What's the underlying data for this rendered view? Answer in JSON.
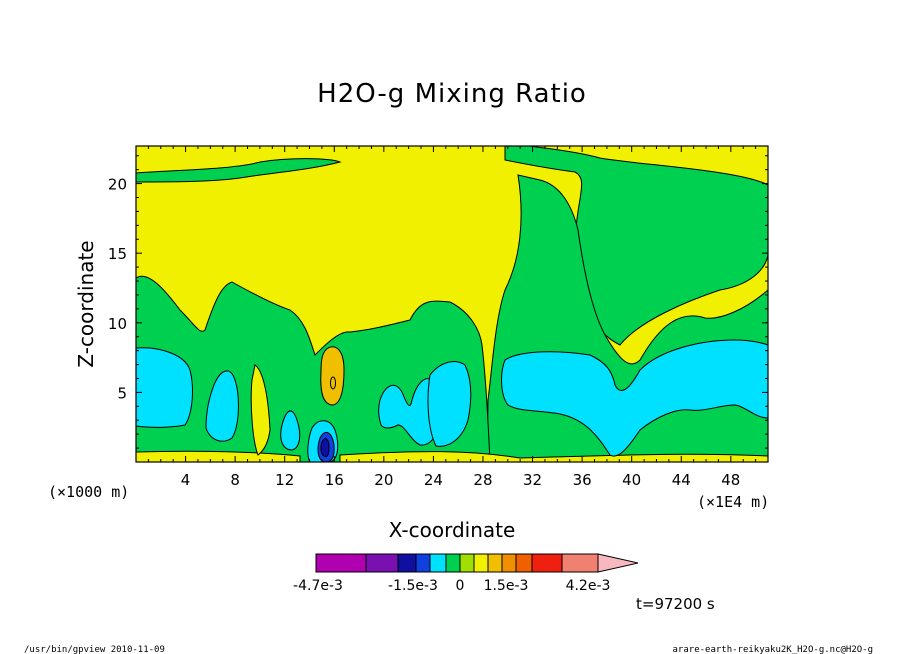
{
  "chart_data": {
    "type": "heatmap",
    "title": "H2O-g Mixing Ratio",
    "xlabel": "X-coordinate",
    "ylabel": "Z-coordinate",
    "x_unit_label": "(×1E4 m)",
    "y_unit_label": "(×1000 m)",
    "xlim": [
      0,
      51
    ],
    "ylim": [
      0,
      22.7
    ],
    "x_ticks": [
      "4",
      "8",
      "12",
      "16",
      "20",
      "24",
      "28",
      "32",
      "36",
      "40",
      "44",
      "48"
    ],
    "y_ticks": [
      "5",
      "10",
      "15",
      "20"
    ],
    "grid": false,
    "colorbar": {
      "colors": [
        "#b000b0",
        "#7a10b0",
        "#1010a0",
        "#1040e0",
        "#00e0ff",
        "#00d050",
        "#a0e000",
        "#f0f000",
        "#f0c000",
        "#f09000",
        "#f06000",
        "#f02010",
        "#f08070",
        "#f8b8c0"
      ],
      "labels": [
        "-4.7e-3",
        "-1.5e-3",
        "0",
        "1.5e-3",
        "4.2e-3"
      ]
    },
    "regions_summary": {
      "background_level": "0.4e-3 to 0.8e-3 (yellow)",
      "green_band_level": "0 to 0.4e-3",
      "cyan_pockets_level": "-0.4e-3 to 0",
      "orange_pocket_level": "0.8e-3 to 1.2e-3",
      "minimum_near": {
        "x": 15,
        "z": 1.2,
        "level": "below -1.5e-3 (blue)"
      }
    }
  },
  "time_label": "t=97200 s",
  "footer_left": "/usr/bin/gpview  2010-11-09",
  "footer_right": "arare-earth-reikyaku2K_H2O-g.nc@H2O-g"
}
